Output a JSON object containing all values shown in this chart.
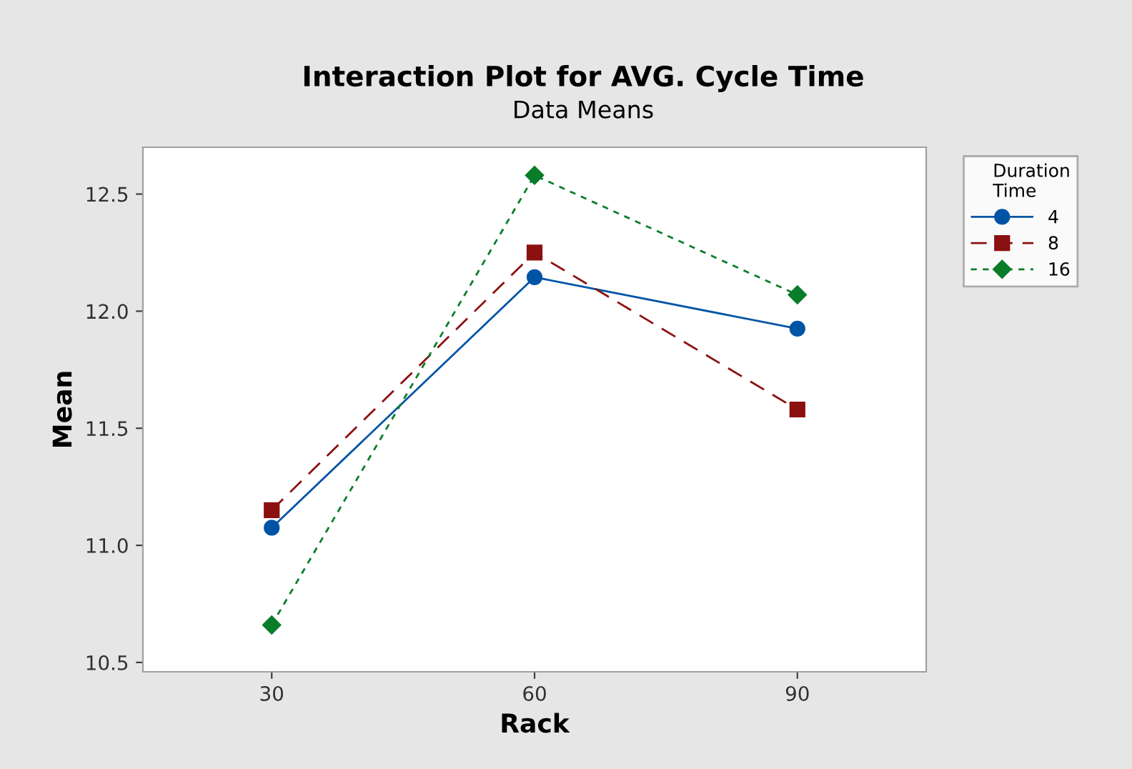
{
  "chart_data": {
    "type": "line",
    "title": "Interaction Plot for AVG. Cycle Time",
    "subtitle": "Data Means",
    "xlabel": "Rack",
    "ylabel": "Mean",
    "legend_title": "Duration\nTime",
    "categories": [
      "30",
      "60",
      "90"
    ],
    "series": [
      {
        "name": "4",
        "color": "#0054a6",
        "values": [
          11.075,
          12.145,
          11.925
        ],
        "marker": "circle",
        "line_style": "solid"
      },
      {
        "name": "8",
        "color": "#8b1010",
        "values": [
          11.15,
          12.25,
          11.58
        ],
        "marker": "square",
        "line_style": "dashed"
      },
      {
        "name": "16",
        "color": "#0a7d2a",
        "values": [
          10.66,
          12.58,
          12.07
        ],
        "marker": "diamond",
        "line_style": "dotted"
      }
    ],
    "ylim": [
      10.46,
      12.7
    ],
    "yticks": [
      10.5,
      {
        "value": 11,
        "label": "11.0"
      },
      11.5,
      {
        "value": 12,
        "label": "12.0"
      },
      12.5
    ],
    "grid": false,
    "legend": "top right"
  }
}
